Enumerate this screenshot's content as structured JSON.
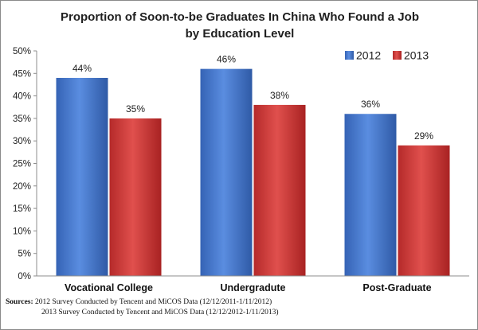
{
  "chart_data": {
    "type": "bar",
    "title_lines": [
      "Proportion of Soon-to-be Graduates In China Who Found a Job",
      "by Education Level"
    ],
    "categories": [
      "Vocational College",
      "Undergradute",
      "Post-Graduate"
    ],
    "series": [
      {
        "name": "2012",
        "values": [
          44,
          46,
          36
        ],
        "color": "#4a7bd0"
      },
      {
        "name": "2013",
        "values": [
          35,
          38,
          29
        ],
        "color": "#d13a3a"
      }
    ],
    "value_labels": [
      [
        "44%",
        "46%",
        "36%"
      ],
      [
        "35%",
        "38%",
        "29%"
      ]
    ],
    "y_ticks": [
      "0%",
      "5%",
      "10%",
      "15%",
      "20%",
      "25%",
      "30%",
      "35%",
      "40%",
      "45%",
      "50%"
    ],
    "ylim": [
      0,
      50
    ],
    "xlabel": "",
    "ylabel": "",
    "grid": false,
    "legend": "top-right"
  },
  "sources": {
    "label": "Sources:",
    "lines": [
      "2012 Survey Conducted by Tencent and MiCOS Data (12/12/2011-1/11/2012)",
      "2013 Survey Conducted by Tencent and MiCOS Data (12/12/2012-1/11/2013)"
    ]
  }
}
